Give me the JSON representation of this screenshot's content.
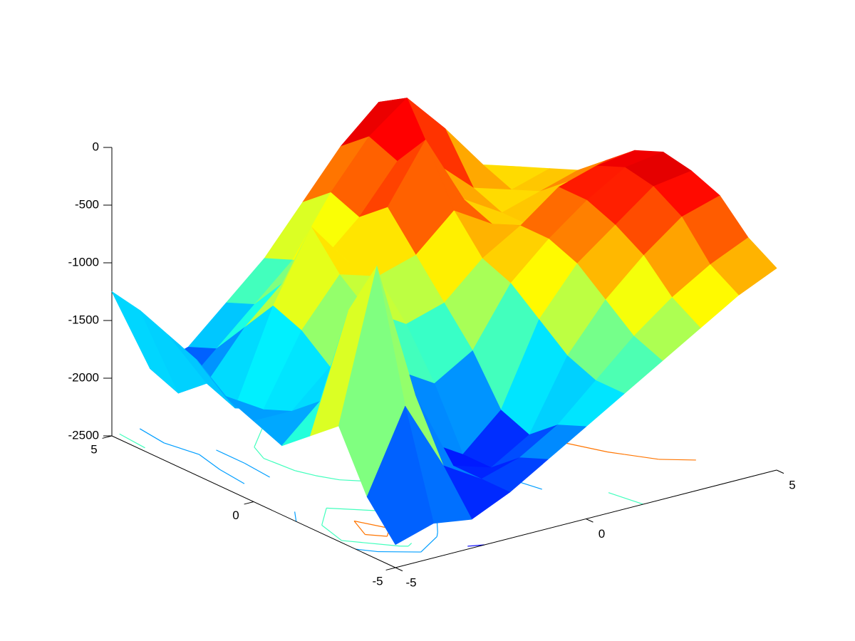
{
  "chart_data": {
    "type": "surface",
    "x": [
      -5,
      -4,
      -3,
      -2,
      -1,
      0,
      1,
      2,
      3,
      4,
      5
    ],
    "y": [
      -5,
      -4,
      -3,
      -2,
      -1,
      0,
      1,
      2,
      3,
      4,
      5
    ],
    "z": [
      [
        -2300,
        -2200,
        -2250,
        -2100,
        -1900,
        -1700,
        -1500,
        -1300,
        -1100,
        -900,
        -750
      ],
      [
        -2000,
        -1300,
        -1900,
        -2100,
        -2000,
        -1800,
        -1500,
        -1200,
        -950,
        -750,
        -600
      ],
      [
        -1500,
        -200,
        -1400,
        -2100,
        -2200,
        -2000,
        -1400,
        -1000,
        -700,
        -450,
        -350
      ],
      [
        -1700,
        -700,
        -1600,
        -2000,
        -2200,
        -1900,
        -1200,
        -800,
        -550,
        -300,
        -250
      ],
      [
        -1900,
        -1600,
        -1700,
        -1500,
        -1700,
        -1500,
        -1000,
        -700,
        -450,
        -250,
        -200
      ],
      [
        -1800,
        -1800,
        -1500,
        -1100,
        -1300,
        -1200,
        -900,
        -700,
        -450,
        -350,
        -300
      ],
      [
        -1700,
        -1900,
        -1300,
        -900,
        -1000,
        -900,
        -600,
        -800,
        -900,
        -600,
        -500
      ],
      [
        -1500,
        -2000,
        -1200,
        -600,
        -1000,
        -600,
        -100,
        -700,
        -900,
        -800,
        -700
      ],
      [
        -1400,
        -1900,
        -1500,
        -1200,
        -1100,
        -800,
        -400,
        -500,
        -800,
        -900,
        -800
      ],
      [
        -1300,
        -2100,
        -1800,
        -1500,
        -1200,
        -700,
        -300,
        -50,
        -400,
        -800,
        -900
      ],
      [
        -1250,
        -2000,
        -1900,
        -1600,
        -1300,
        -900,
        -500,
        -200,
        -500,
        -900,
        -1000
      ]
    ],
    "xlim": [
      -5,
      5
    ],
    "ylim": [
      -5,
      5
    ],
    "zlim": [
      -2500,
      0
    ],
    "xticks": [
      -5,
      0,
      5
    ],
    "yticks": [
      -5,
      0,
      5
    ],
    "zticks": [
      -2500,
      -2000,
      -1500,
      -1000,
      -500,
      0
    ],
    "colormap": "jet",
    "contour_levels": [
      -2200,
      -1800,
      -1400,
      -600
    ]
  }
}
